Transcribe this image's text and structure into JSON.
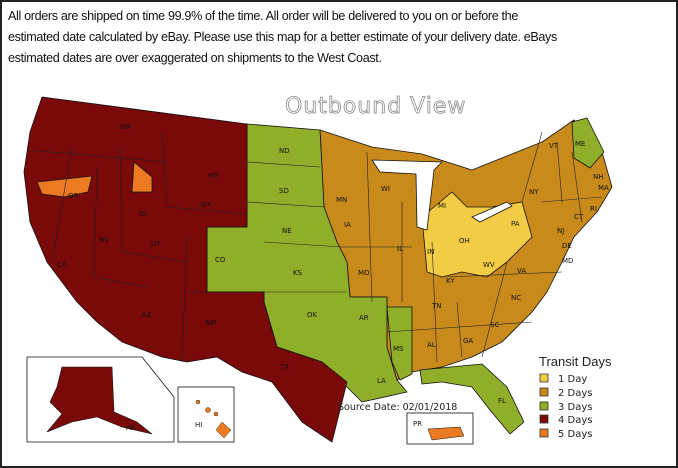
{
  "notice": {
    "lines": [
      "All orders are shipped on time 99.9% of the time.  All order will be delivered to you on or before the",
      "estimated date calculated by eBay.  Please use this map for a better estimate of your delivery date.  eBays",
      "estimated dates are over exaggerated on shipments to the West Coast."
    ]
  },
  "map": {
    "title": "Outbound View",
    "source_date": "Source Date: 02/01/2018",
    "colors": {
      "1": "#f2cc44",
      "2": "#c98a1c",
      "3": "#8fae2a",
      "4": "#7a0a0a",
      "5": "#ec7a22"
    },
    "states": {
      "WA": "WA",
      "OR": "OR",
      "CA": "CA",
      "NV": "NV",
      "ID": "ID",
      "MT": "MT",
      "WY": "WY",
      "UT": "UT",
      "AZ": "AZ",
      "CO": "CO",
      "NM": "NM",
      "ND": "ND",
      "SD": "SD",
      "NE": "NE",
      "KS": "KS",
      "OK": "OK",
      "TX": "TX",
      "MN": "MN",
      "IA": "IA",
      "MO": "MO",
      "AR": "AR",
      "LA": "LA",
      "WI": "WI",
      "IL": "IL",
      "MS": "MS",
      "MI": "MI",
      "IN": "IN",
      "OH": "OH",
      "KY": "KY",
      "TN": "TN",
      "AL": "AL",
      "GA": "GA",
      "FL": "FL",
      "SC": "SC",
      "NC": "NC",
      "VA": "VA",
      "WV": "WV",
      "PA": "PA",
      "NY": "NY",
      "VT": "VT",
      "NH": "NH",
      "ME": "ME",
      "MA": "MA",
      "RI": "RI",
      "CT": "CT",
      "NJ": "NJ",
      "DE": "DE",
      "MD": "MD",
      "AK": "AK",
      "HI": "HI",
      "PR": "PR"
    }
  },
  "legend": {
    "title": "Transit Days",
    "items": [
      {
        "label": "1 Day",
        "days": 1
      },
      {
        "label": "2 Days",
        "days": 2
      },
      {
        "label": "3 Days",
        "days": 3
      },
      {
        "label": "4 Days",
        "days": 4
      },
      {
        "label": "5 Days",
        "days": 5
      }
    ]
  }
}
